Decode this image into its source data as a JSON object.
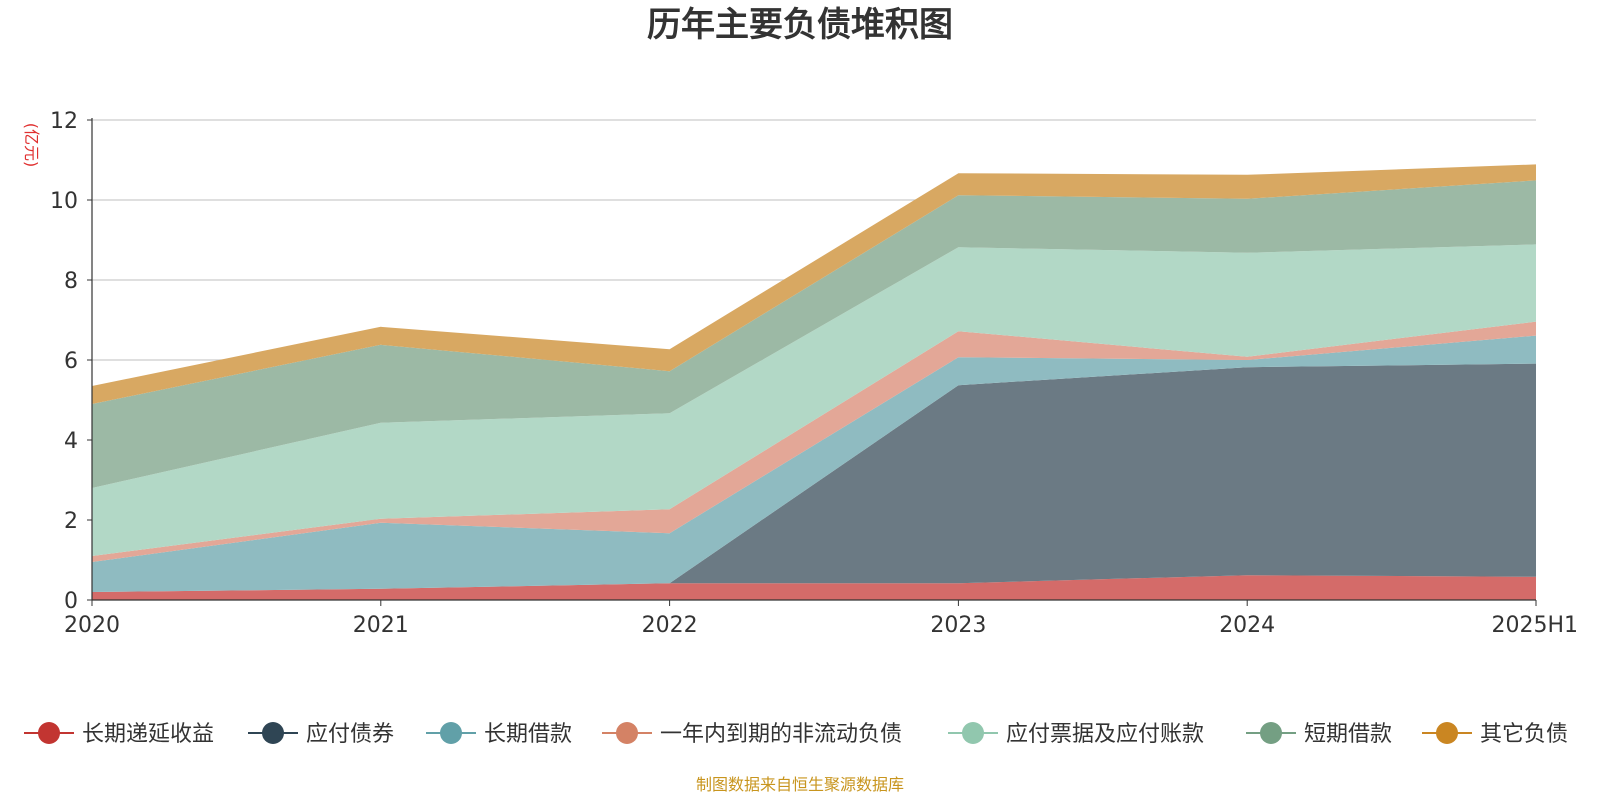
{
  "colors": {
    "title": "#333333",
    "unit": "#e03030",
    "source": "#c8951e",
    "grid": "#cccccc",
    "axis": "#333333"
  },
  "chart_data": {
    "type": "area",
    "stacked": true,
    "title": "历年主要负债堆积图",
    "ylabel": "(亿元)",
    "ylim": [
      0,
      12
    ],
    "yticks": [
      0,
      2,
      4,
      6,
      8,
      10,
      12
    ],
    "categories": [
      "2020",
      "2021",
      "2022",
      "2023",
      "2024",
      "2025H1"
    ],
    "grid": true,
    "legend": "bottom",
    "source": "制图数据来自恒生聚源数据库",
    "series": [
      {
        "name": "长期递延收益",
        "color": "#c23531",
        "fill": "#d46b69",
        "values": [
          0.2,
          0.28,
          0.42,
          0.42,
          0.62,
          0.58
        ]
      },
      {
        "name": "应付债券",
        "color": "#2f4554",
        "fill": "#6b7a84",
        "values": [
          0,
          0,
          0,
          4.95,
          5.2,
          5.33
        ]
      },
      {
        "name": "长期借款",
        "color": "#61a0a8",
        "fill": "#8fbbc1",
        "values": [
          0.75,
          1.65,
          1.25,
          0.7,
          0.18,
          0.7
        ]
      },
      {
        "name": "一年内到期的非流动负债",
        "color": "#d48265",
        "fill": "#e3a797",
        "values": [
          0.15,
          0.1,
          0.6,
          0.65,
          0.08,
          0.35
        ]
      },
      {
        "name": "应付票据及应付账款",
        "color": "#91c7ae",
        "fill": "#b2d8c6",
        "values": [
          1.7,
          2.4,
          2.4,
          2.1,
          2.6,
          1.93
        ]
      },
      {
        "name": "短期借款",
        "color": "#749f83",
        "fill": "#9cb9a5",
        "values": [
          2.1,
          1.95,
          1.05,
          1.3,
          1.35,
          1.6
        ]
      },
      {
        "name": "其它负债",
        "color": "#ca8622",
        "fill": "#d8a862",
        "values": [
          0.45,
          0.45,
          0.55,
          0.55,
          0.6,
          0.4
        ]
      }
    ]
  }
}
